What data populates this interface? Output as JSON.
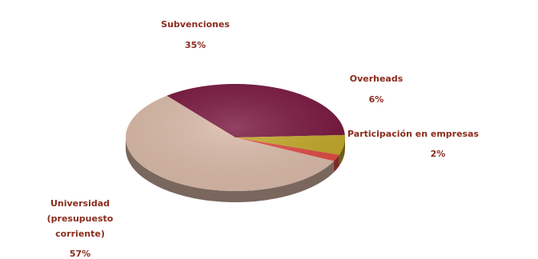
{
  "chart_data": {
    "type": "pie",
    "title": "",
    "slices": [
      {
        "label": "Subvenciones",
        "value_label": "35%",
        "value": 35,
        "color": "#7a1840"
      },
      {
        "label": "Overheads",
        "value_label": "6%",
        "value": 6,
        "color": "#c4aa2a"
      },
      {
        "label": "Participación en empresas",
        "value_label": "2%",
        "value": 2,
        "color": "#e04c45"
      },
      {
        "label_lines": [
          "Universidad",
          "(presupuesto",
          "corriente)"
        ],
        "value_label": "57%",
        "value": 57,
        "color": "#dcbcaa"
      }
    ],
    "style": "3d",
    "legend": "none"
  }
}
